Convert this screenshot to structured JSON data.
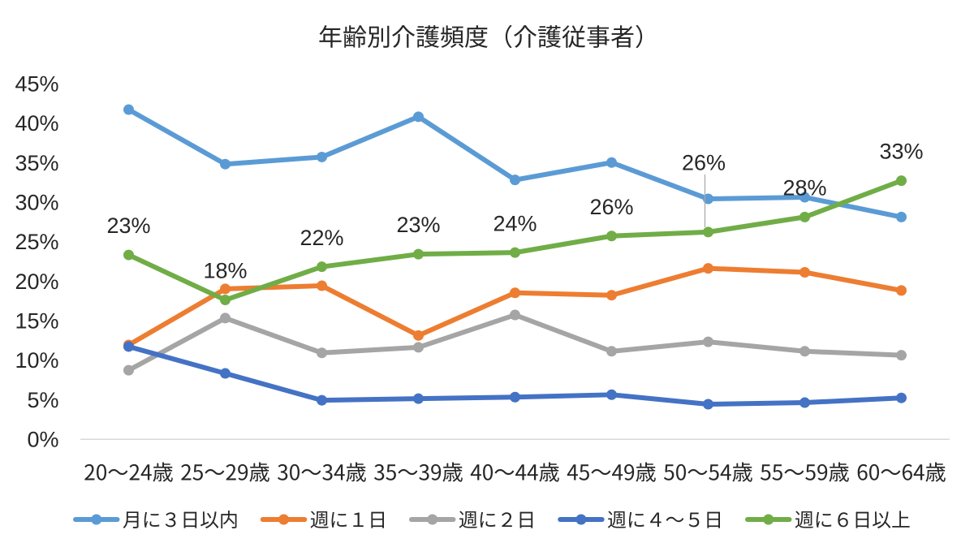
{
  "page": {
    "background": "#FFFFFF",
    "window_title": ""
  },
  "chart_data": {
    "type": "line",
    "title": "年齢別介護頻度（介護従事者）",
    "categories": [
      "20〜24歳",
      "25〜29歳",
      "30〜34歳",
      "35〜39歳",
      "40〜44歳",
      "45〜49歳",
      "50〜54歳",
      "55〜59歳",
      "60〜64歳"
    ],
    "xlabel": "",
    "ylabel": "",
    "ylim": [
      0,
      45
    ],
    "y_tick_values": [
      0,
      5,
      10,
      15,
      20,
      25,
      30,
      35,
      40,
      45
    ],
    "y_tick_labels": [
      "0%",
      "5%",
      "10%",
      "15%",
      "20%",
      "25%",
      "30%",
      "35%",
      "40%",
      "45%"
    ],
    "grid": false,
    "legend_position": "bottom",
    "series": [
      {
        "name": "月に３日以内",
        "color": "#5B9BD5",
        "marker": "circle",
        "values": [
          41.7,
          34.8,
          35.7,
          40.8,
          32.8,
          35.0,
          30.4,
          30.6,
          28.1
        ]
      },
      {
        "name": "週に１日",
        "color": "#ED7D31",
        "marker": "circle",
        "values": [
          11.9,
          19.0,
          19.4,
          13.1,
          18.5,
          18.2,
          21.6,
          21.1,
          18.8
        ]
      },
      {
        "name": "週に２日",
        "color": "#A5A5A5",
        "marker": "circle",
        "values": [
          8.7,
          15.3,
          10.9,
          11.6,
          15.7,
          11.1,
          12.3,
          11.1,
          10.6
        ]
      },
      {
        "name": "週に４〜５日",
        "color": "#4472C4",
        "marker": "circle",
        "values": [
          11.7,
          8.3,
          4.9,
          5.1,
          5.3,
          5.6,
          4.4,
          4.6,
          5.2
        ]
      },
      {
        "name": "週に６日以上",
        "color": "#70AD47",
        "marker": "circle",
        "values": [
          23.3,
          17.6,
          21.8,
          23.4,
          23.6,
          25.7,
          26.2,
          28.1,
          32.7
        ],
        "data_labels": [
          "23%",
          "18%",
          "22%",
          "23%",
          "24%",
          "26%",
          "26%",
          "28%",
          "33%"
        ],
        "moved_label": {
          "category_index": 6,
          "leader_line": true
        }
      }
    ],
    "styles": {
      "text_color": "#262626",
      "axis_line_color": "#D9D9D9",
      "leader_line_color": "#A6A6A6",
      "background": "#FFFFFF"
    }
  }
}
